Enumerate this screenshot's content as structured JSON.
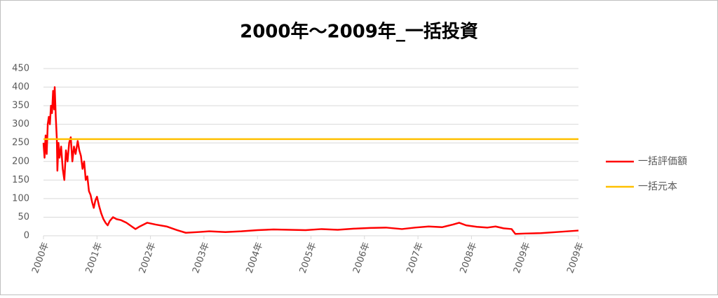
{
  "chart_data": {
    "type": "line",
    "title": "2000年～2009年_一括投資",
    "xlim": [
      2000,
      2010
    ],
    "ylim": [
      0,
      450
    ],
    "yticks": [
      0,
      50,
      100,
      150,
      200,
      250,
      300,
      350,
      400,
      450
    ],
    "xticks": [
      {
        "value": 2000,
        "label": "2000年"
      },
      {
        "value": 2001,
        "label": "2001年"
      },
      {
        "value": 2002,
        "label": "2002年"
      },
      {
        "value": 2003,
        "label": "2003年"
      },
      {
        "value": 2004,
        "label": "2004年"
      },
      {
        "value": 2005,
        "label": "2005年"
      },
      {
        "value": 2006,
        "label": "2006年"
      },
      {
        "value": 2007,
        "label": "2007年"
      },
      {
        "value": 2008,
        "label": "2008年"
      },
      {
        "value": 2009,
        "label": "2009年"
      },
      {
        "value": 2010,
        "label": "2009年"
      }
    ],
    "grid": true,
    "legend": "right",
    "series": [
      {
        "name": "一括評価額",
        "color": "#ff0000",
        "x": [
          2000.0,
          2000.02,
          2000.04,
          2000.06,
          2000.08,
          2000.1,
          2000.12,
          2000.14,
          2000.16,
          2000.18,
          2000.2,
          2000.21,
          2000.23,
          2000.25,
          2000.26,
          2000.28,
          2000.3,
          2000.33,
          2000.36,
          2000.39,
          2000.42,
          2000.45,
          2000.48,
          2000.51,
          2000.54,
          2000.57,
          2000.6,
          2000.64,
          2000.67,
          2000.7,
          2000.73,
          2000.76,
          2000.79,
          2000.82,
          2000.85,
          2000.88,
          2000.91,
          2000.94,
          2000.97,
          2001.0,
          2001.04,
          2001.08,
          2001.12,
          2001.16,
          2001.2,
          2001.24,
          2001.3,
          2001.36,
          2001.45,
          2001.55,
          2001.65,
          2001.72,
          2001.8,
          2001.94,
          2002.1,
          2002.3,
          2002.5,
          2002.66,
          2002.9,
          2003.1,
          2003.4,
          2003.7,
          2004.0,
          2004.3,
          2004.6,
          2004.9,
          2005.2,
          2005.5,
          2005.8,
          2006.1,
          2006.4,
          2006.7,
          2006.95,
          2007.2,
          2007.45,
          2007.65,
          2007.77,
          2007.9,
          2008.1,
          2008.3,
          2008.45,
          2008.6,
          2008.75,
          2008.82,
          2009.0,
          2009.3,
          2009.6,
          2010.0
        ],
        "values": [
          250,
          210,
          270,
          220,
          300,
          320,
          300,
          350,
          330,
          390,
          340,
          400,
          320,
          260,
          175,
          250,
          210,
          240,
          180,
          150,
          230,
          200,
          250,
          265,
          200,
          240,
          220,
          255,
          230,
          215,
          180,
          200,
          150,
          160,
          120,
          110,
          90,
          75,
          95,
          105,
          80,
          60,
          45,
          35,
          28,
          40,
          50,
          45,
          42,
          35,
          25,
          18,
          25,
          35,
          30,
          25,
          15,
          8,
          10,
          12,
          10,
          12,
          15,
          17,
          16,
          15,
          18,
          16,
          19,
          21,
          22,
          18,
          22,
          25,
          23,
          30,
          35,
          28,
          24,
          22,
          25,
          20,
          18,
          5,
          6,
          7,
          10,
          14
        ]
      },
      {
        "name": "一括元本",
        "color": "#ffc000",
        "x": [
          2000,
          2010
        ],
        "values": [
          260,
          260
        ]
      }
    ]
  }
}
